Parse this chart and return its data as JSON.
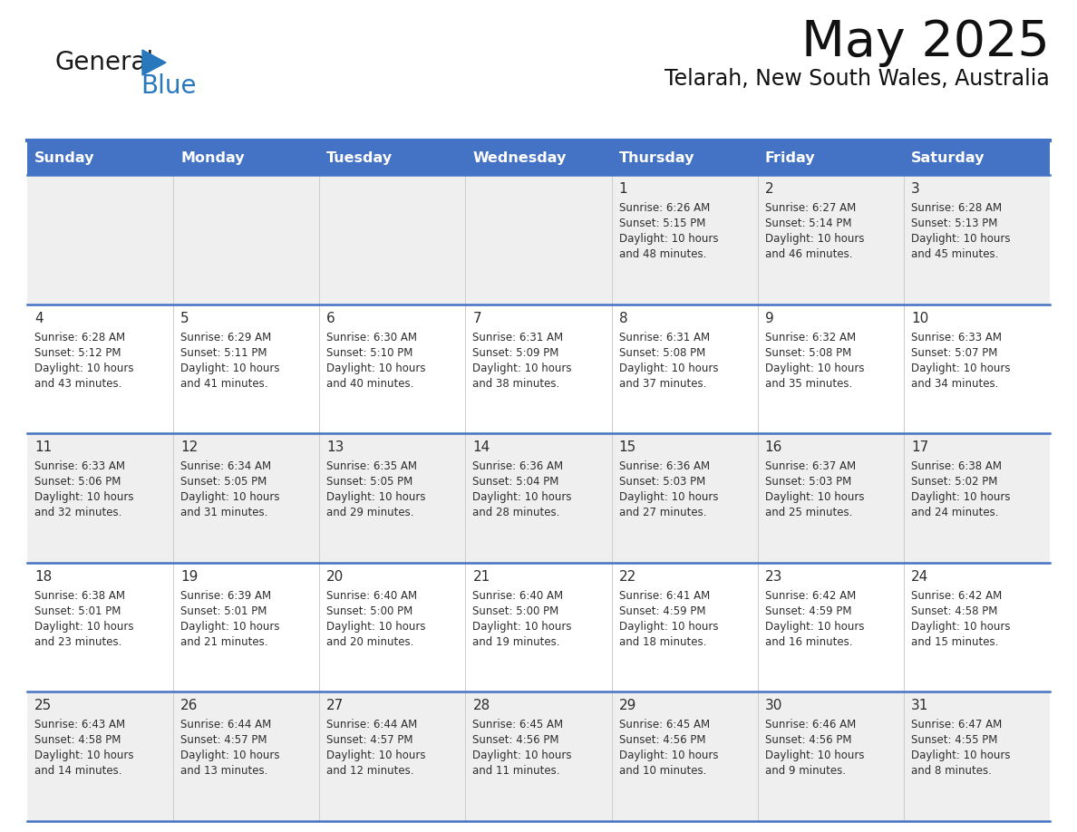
{
  "title": "May 2025",
  "subtitle": "Telarah, New South Wales, Australia",
  "days_of_week": [
    "Sunday",
    "Monday",
    "Tuesday",
    "Wednesday",
    "Thursday",
    "Friday",
    "Saturday"
  ],
  "header_bg": "#4472C4",
  "header_text": "#FFFFFF",
  "bg_color": "#FFFFFF",
  "row0_bg": "#EFEFEF",
  "row1_bg": "#FFFFFF",
  "day_text_color": "#2d2d2d",
  "info_text_color": "#2d2d2d",
  "border_color": "#4472C4",
  "separator_color": "#4472C4",
  "logo_dark_color": "#1a1a1a",
  "logo_blue_color": "#2878be",
  "calendar": [
    [
      {
        "day": null,
        "info": null
      },
      {
        "day": null,
        "info": null
      },
      {
        "day": null,
        "info": null
      },
      {
        "day": null,
        "info": null
      },
      {
        "day": "1",
        "info": "Sunrise: 6:26 AM\nSunset: 5:15 PM\nDaylight: 10 hours\nand 48 minutes."
      },
      {
        "day": "2",
        "info": "Sunrise: 6:27 AM\nSunset: 5:14 PM\nDaylight: 10 hours\nand 46 minutes."
      },
      {
        "day": "3",
        "info": "Sunrise: 6:28 AM\nSunset: 5:13 PM\nDaylight: 10 hours\nand 45 minutes."
      }
    ],
    [
      {
        "day": "4",
        "info": "Sunrise: 6:28 AM\nSunset: 5:12 PM\nDaylight: 10 hours\nand 43 minutes."
      },
      {
        "day": "5",
        "info": "Sunrise: 6:29 AM\nSunset: 5:11 PM\nDaylight: 10 hours\nand 41 minutes."
      },
      {
        "day": "6",
        "info": "Sunrise: 6:30 AM\nSunset: 5:10 PM\nDaylight: 10 hours\nand 40 minutes."
      },
      {
        "day": "7",
        "info": "Sunrise: 6:31 AM\nSunset: 5:09 PM\nDaylight: 10 hours\nand 38 minutes."
      },
      {
        "day": "8",
        "info": "Sunrise: 6:31 AM\nSunset: 5:08 PM\nDaylight: 10 hours\nand 37 minutes."
      },
      {
        "day": "9",
        "info": "Sunrise: 6:32 AM\nSunset: 5:08 PM\nDaylight: 10 hours\nand 35 minutes."
      },
      {
        "day": "10",
        "info": "Sunrise: 6:33 AM\nSunset: 5:07 PM\nDaylight: 10 hours\nand 34 minutes."
      }
    ],
    [
      {
        "day": "11",
        "info": "Sunrise: 6:33 AM\nSunset: 5:06 PM\nDaylight: 10 hours\nand 32 minutes."
      },
      {
        "day": "12",
        "info": "Sunrise: 6:34 AM\nSunset: 5:05 PM\nDaylight: 10 hours\nand 31 minutes."
      },
      {
        "day": "13",
        "info": "Sunrise: 6:35 AM\nSunset: 5:05 PM\nDaylight: 10 hours\nand 29 minutes."
      },
      {
        "day": "14",
        "info": "Sunrise: 6:36 AM\nSunset: 5:04 PM\nDaylight: 10 hours\nand 28 minutes."
      },
      {
        "day": "15",
        "info": "Sunrise: 6:36 AM\nSunset: 5:03 PM\nDaylight: 10 hours\nand 27 minutes."
      },
      {
        "day": "16",
        "info": "Sunrise: 6:37 AM\nSunset: 5:03 PM\nDaylight: 10 hours\nand 25 minutes."
      },
      {
        "day": "17",
        "info": "Sunrise: 6:38 AM\nSunset: 5:02 PM\nDaylight: 10 hours\nand 24 minutes."
      }
    ],
    [
      {
        "day": "18",
        "info": "Sunrise: 6:38 AM\nSunset: 5:01 PM\nDaylight: 10 hours\nand 23 minutes."
      },
      {
        "day": "19",
        "info": "Sunrise: 6:39 AM\nSunset: 5:01 PM\nDaylight: 10 hours\nand 21 minutes."
      },
      {
        "day": "20",
        "info": "Sunrise: 6:40 AM\nSunset: 5:00 PM\nDaylight: 10 hours\nand 20 minutes."
      },
      {
        "day": "21",
        "info": "Sunrise: 6:40 AM\nSunset: 5:00 PM\nDaylight: 10 hours\nand 19 minutes."
      },
      {
        "day": "22",
        "info": "Sunrise: 6:41 AM\nSunset: 4:59 PM\nDaylight: 10 hours\nand 18 minutes."
      },
      {
        "day": "23",
        "info": "Sunrise: 6:42 AM\nSunset: 4:59 PM\nDaylight: 10 hours\nand 16 minutes."
      },
      {
        "day": "24",
        "info": "Sunrise: 6:42 AM\nSunset: 4:58 PM\nDaylight: 10 hours\nand 15 minutes."
      }
    ],
    [
      {
        "day": "25",
        "info": "Sunrise: 6:43 AM\nSunset: 4:58 PM\nDaylight: 10 hours\nand 14 minutes."
      },
      {
        "day": "26",
        "info": "Sunrise: 6:44 AM\nSunset: 4:57 PM\nDaylight: 10 hours\nand 13 minutes."
      },
      {
        "day": "27",
        "info": "Sunrise: 6:44 AM\nSunset: 4:57 PM\nDaylight: 10 hours\nand 12 minutes."
      },
      {
        "day": "28",
        "info": "Sunrise: 6:45 AM\nSunset: 4:56 PM\nDaylight: 10 hours\nand 11 minutes."
      },
      {
        "day": "29",
        "info": "Sunrise: 6:45 AM\nSunset: 4:56 PM\nDaylight: 10 hours\nand 10 minutes."
      },
      {
        "day": "30",
        "info": "Sunrise: 6:46 AM\nSunset: 4:56 PM\nDaylight: 10 hours\nand 9 minutes."
      },
      {
        "day": "31",
        "info": "Sunrise: 6:47 AM\nSunset: 4:55 PM\nDaylight: 10 hours\nand 8 minutes."
      }
    ]
  ]
}
